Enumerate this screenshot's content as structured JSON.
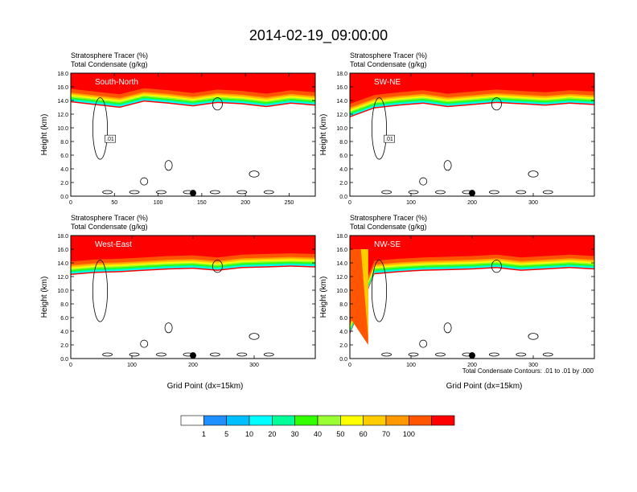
{
  "title": "2014-02-19_09:00:00",
  "annotation_labels": [
    "South-North",
    "SW-NE",
    "West-East",
    "NW-SE"
  ],
  "colorbar": {
    "labels": [
      "1",
      "5",
      "10",
      "20",
      "30",
      "40",
      "50",
      "60",
      "70",
      "100"
    ],
    "colors": [
      "#ffffff",
      "#1e90ff",
      "#00bfff",
      "#00ffff",
      "#00ff99",
      "#33ff00",
      "#99ff33",
      "#ffff00",
      "#ffcc00",
      "#ff9900",
      "#ff5500",
      "#ff0000"
    ]
  },
  "contour_note": "Total Condensate Contours: .01 to .01 by .000",
  "chart_data": [
    {
      "type": "heatmap",
      "panel": "South-North",
      "subtitle_line1": "Stratosphere Tracer   (%)",
      "subtitle_line2": "Total Condensate   (g/kg)",
      "ylabel": "Height (km)",
      "xlabel": "",
      "xlim": [
        0,
        280
      ],
      "ylim": [
        0,
        18
      ],
      "x_ticks": [
        "0",
        "50",
        "100",
        "150",
        "200",
        "250"
      ],
      "y_ticks": [
        "0.0",
        "2.0",
        "4.0",
        "6.0",
        "8.0",
        "10.0",
        "12.0",
        "14.0",
        "16.0",
        "18.0"
      ],
      "marker_x": 140,
      "contour_label": ".01",
      "tropopause_base_km": [
        15.7,
        15.3,
        14.9,
        15.8,
        15.5,
        15.1,
        15.6,
        15.4,
        15.0,
        15.5,
        15.2
      ],
      "stratosphere_tracer_top_pct": 100
    },
    {
      "type": "heatmap",
      "panel": "SW-NE",
      "subtitle_line1": "Stratosphere Tracer   (%)",
      "subtitle_line2": "Total Condensate   (g/kg)",
      "ylabel": "Height (km)",
      "xlabel": "",
      "xlim": [
        0,
        400
      ],
      "ylim": [
        0,
        18
      ],
      "x_ticks": [
        "0",
        "100",
        "200",
        "300"
      ],
      "y_ticks": [
        "0.0",
        "2.0",
        "4.0",
        "6.0",
        "8.0",
        "10.0",
        "12.0",
        "14.0",
        "16.0",
        "18.0"
      ],
      "marker_x": 200,
      "contour_label": ".01",
      "tropopause_base_km": [
        13.5,
        14.8,
        15.2,
        15.5,
        15.0,
        15.3,
        15.6,
        15.4,
        15.2,
        15.5,
        15.3
      ],
      "stratosphere_tracer_top_pct": 100
    },
    {
      "type": "heatmap",
      "panel": "West-East",
      "subtitle_line1": "Stratosphere Tracer   (%)",
      "subtitle_line2": "Total Condensate   (g/kg)",
      "ylabel": "Height (km)",
      "xlabel": "Grid Point (dx=15km)",
      "xlim": [
        0,
        400
      ],
      "ylim": [
        0,
        18
      ],
      "x_ticks": [
        "0",
        "100",
        "200",
        "300"
      ],
      "y_ticks": [
        "0.0",
        "2.0",
        "4.0",
        "6.0",
        "8.0",
        "10.0",
        "12.0",
        "14.0",
        "16.0",
        "18.0"
      ],
      "marker_x": 200,
      "contour_label": "",
      "tropopause_base_km": [
        14.2,
        14.5,
        14.6,
        14.8,
        15.0,
        15.1,
        14.8,
        15.2,
        15.3,
        15.4,
        15.3
      ],
      "stratosphere_tracer_top_pct": 100
    },
    {
      "type": "heatmap",
      "panel": "NW-SE",
      "subtitle_line1": "Stratosphere Tracer   (%)",
      "subtitle_line2": "Total Condensate   (g/kg)",
      "ylabel": "Height (km)",
      "xlabel": "Grid Point (dx=15km)",
      "xlim": [
        0,
        400
      ],
      "ylim": [
        0,
        18
      ],
      "x_ticks": [
        "0",
        "100",
        "200",
        "300"
      ],
      "y_ticks": [
        "0.0",
        "2.0",
        "4.0",
        "6.0",
        "8.0",
        "10.0",
        "12.0",
        "14.0",
        "16.0",
        "18.0"
      ],
      "marker_x": 200,
      "contour_label": "",
      "tropopause_base_km": [
        5.5,
        14.3,
        14.6,
        14.8,
        14.9,
        15.0,
        15.2,
        14.8,
        15.0,
        15.2,
        15.0
      ],
      "stratosphere_tracer_top_pct": 100
    }
  ]
}
